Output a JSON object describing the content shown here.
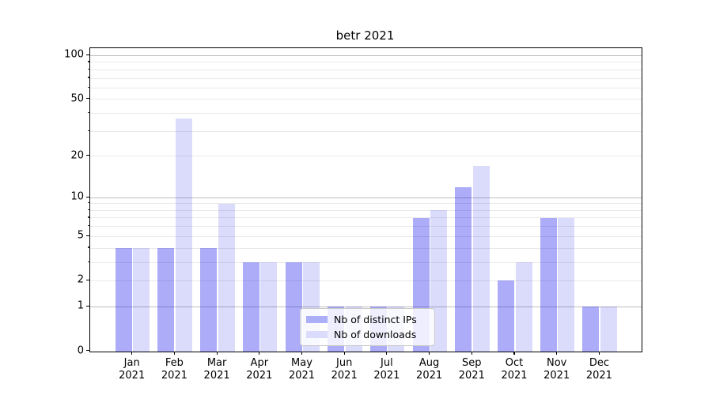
{
  "title": "betr 2021",
  "chart_data": {
    "type": "bar",
    "title": "betr 2021",
    "categories": [
      "Jan 2021",
      "Feb 2021",
      "Mar 2021",
      "Apr 2021",
      "May 2021",
      "Jun 2021",
      "Jul 2021",
      "Aug 2021",
      "Sep 2021",
      "Oct 2021",
      "Nov 2021",
      "Dec 2021"
    ],
    "months": [
      "Jan",
      "Feb",
      "Mar",
      "Apr",
      "May",
      "Jun",
      "Jul",
      "Aug",
      "Sep",
      "Oct",
      "Nov",
      "Dec"
    ],
    "year_label": "2021",
    "series": [
      {
        "name": "Nb of distinct IPs",
        "key": "distinct-ips",
        "swatch": "#abaff8",
        "fill": "rgba(16,16,235,0.35)",
        "values": [
          4,
          4,
          4,
          3,
          3,
          1,
          1,
          7,
          12,
          2,
          7,
          1
        ]
      },
      {
        "name": "Nb of downloads",
        "key": "downloads",
        "swatch": "#dbdcfb",
        "fill": "rgba(16,16,235,0.15)",
        "values": [
          4,
          37,
          9,
          3,
          3,
          1,
          1,
          8,
          17,
          3,
          7,
          1
        ]
      }
    ],
    "yscale": "log1p",
    "ylim": [
      0,
      100
    ],
    "yticks": [
      0,
      1,
      2,
      5,
      10,
      20,
      50,
      100
    ],
    "major_gridlines": [
      1,
      10,
      100
    ],
    "minor_gridlines": [
      2,
      3,
      4,
      5,
      6,
      7,
      8,
      9,
      20,
      30,
      40,
      50,
      60,
      70,
      80,
      90
    ],
    "grid": "on",
    "legend_position": "lower center",
    "colors": {
      "grid_major": "#bdbdbd",
      "grid_minor": "#e9e9e9",
      "spine": "#000000"
    }
  }
}
